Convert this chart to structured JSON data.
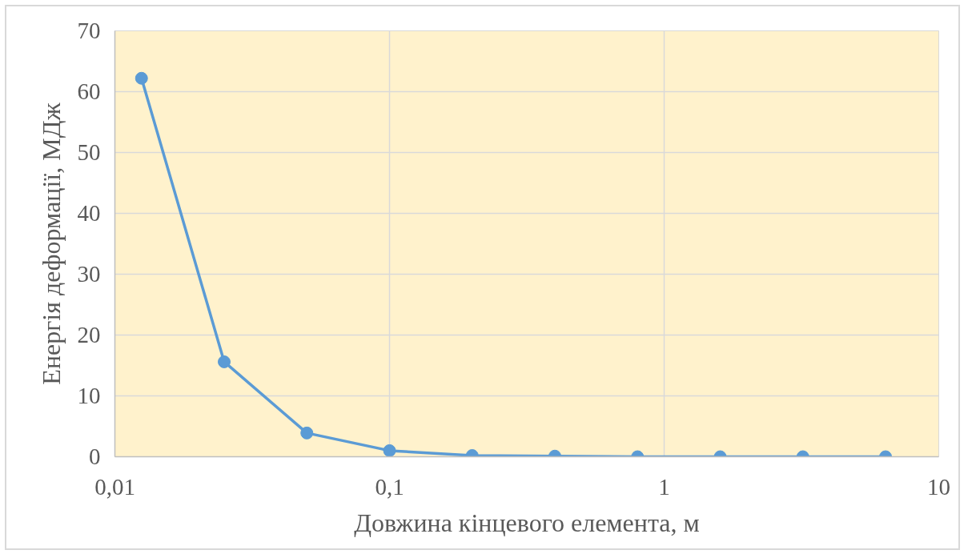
{
  "chart_data": {
    "type": "line",
    "xlabel": "Довжина кінцевого елемента, м",
    "ylabel": "Енергія деформації, МДж",
    "x": [
      0.0125,
      0.025,
      0.05,
      0.1,
      0.2,
      0.4,
      0.8,
      1.6,
      3.2,
      6.4
    ],
    "values": [
      62.2,
      15.6,
      3.9,
      1.0,
      0.2,
      0.1,
      0.0,
      0.0,
      0.0,
      0.0
    ],
    "color": "#5b9bd5",
    "marker": "circle",
    "log": "x",
    "xlim": [
      0.01,
      10
    ],
    "ylim": [
      0,
      70
    ],
    "xticks": [
      {
        "value": 0.01,
        "label": "0,01"
      },
      {
        "value": 0.1,
        "label": "0,1"
      },
      1,
      10
    ],
    "yticks": [
      0,
      10,
      20,
      30,
      40,
      50,
      60,
      70
    ],
    "grid": true
  }
}
